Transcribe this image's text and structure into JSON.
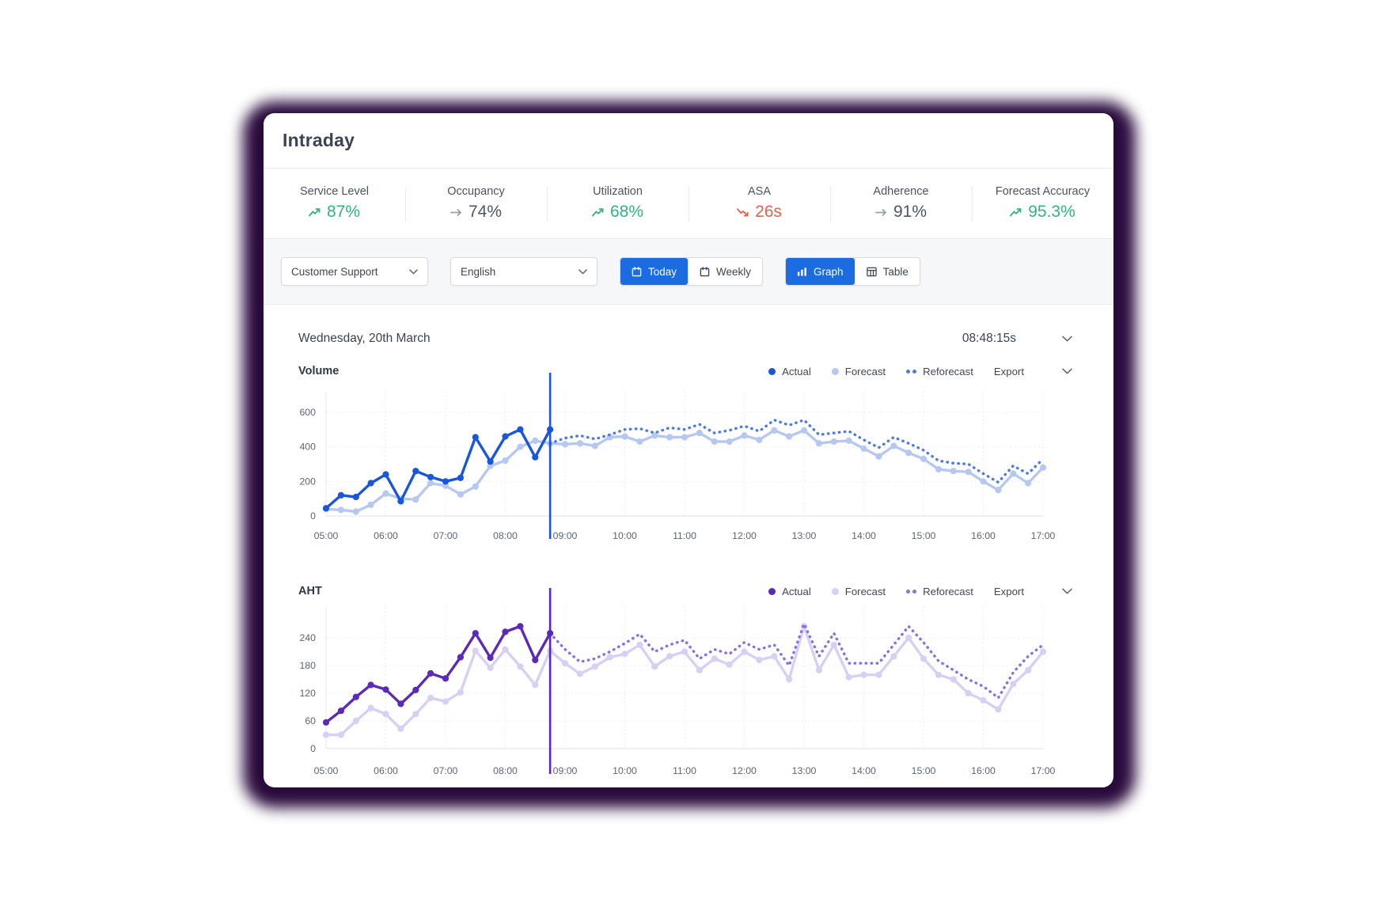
{
  "header": {
    "title": "Intraday"
  },
  "kpis": [
    {
      "label": "Service Level",
      "value": "87%",
      "trend": "up",
      "tone": "positive"
    },
    {
      "label": "Occupancy",
      "value": "74%",
      "trend": "flat",
      "tone": "neutral"
    },
    {
      "label": "Utilization",
      "value": "68%",
      "trend": "up",
      "tone": "positive"
    },
    {
      "label": "ASA",
      "value": "26s",
      "trend": "down",
      "tone": "negative"
    },
    {
      "label": "Adherence",
      "value": "91%",
      "trend": "flat",
      "tone": "neutral"
    },
    {
      "label": "Forecast Accuracy",
      "value": "95.3%",
      "trend": "up",
      "tone": "positive"
    }
  ],
  "colors": {
    "positive": "#2eb480",
    "negative": "#ee5d50",
    "neutral_icon": "#97a0ae",
    "neutral_text": "#4d5667",
    "accent_blue": "#1a6ce0",
    "backdrop_purple": "#2a0b3d",
    "volume_actual": "#1a56db",
    "volume_forecast": "#b7c8f0",
    "volume_reforecast": "#4e7ae8",
    "aht_actual": "#5b2ab8",
    "aht_forecast": "#d8d0f3",
    "aht_reforecast": "#8a6fe0"
  },
  "filters": {
    "queue": {
      "value": "Customer Support"
    },
    "language": {
      "value": "English"
    },
    "period": {
      "options": [
        "Today",
        "Weekly"
      ],
      "selected": "Today"
    },
    "view": {
      "options": [
        "Graph",
        "Table"
      ],
      "selected": "Graph"
    }
  },
  "date_bar": {
    "date": "Wednesday, 20th March",
    "time": "08:48:15s"
  },
  "chart_data": [
    {
      "type": "line",
      "title": "Volume",
      "export_label": "Export",
      "x_ticks": [
        "05:00",
        "06:00",
        "07:00",
        "08:00",
        "09:00",
        "10:00",
        "11:00",
        "12:00",
        "13:00",
        "14:00",
        "15:00",
        "16:00",
        "17:00"
      ],
      "x_step_minutes": 15,
      "n_points": 49,
      "ylim": [
        0,
        700
      ],
      "yticks": [
        0,
        200,
        400,
        600
      ],
      "now_index": 15,
      "now_time": "08:45",
      "now_line_color": "#1a56db",
      "legend_position": "top-right",
      "grid": true,
      "series": [
        {
          "name": "Forecast",
          "color": "#b7c8f0",
          "style": "solid",
          "points": true,
          "start_index": 0,
          "values": [
            40,
            35,
            25,
            65,
            130,
            100,
            95,
            190,
            175,
            125,
            170,
            290,
            320,
            400,
            435,
            420,
            415,
            420,
            405,
            455,
            460,
            430,
            465,
            455,
            455,
            480,
            430,
            430,
            465,
            440,
            495,
            460,
            495,
            420,
            430,
            435,
            390,
            345,
            405,
            365,
            330,
            270,
            260,
            255,
            200,
            150,
            245,
            190,
            280
          ]
        },
        {
          "name": "Reforecast",
          "color": "#4e7ae8",
          "style": "dotted",
          "points": false,
          "start_index": 15,
          "values": [
            420,
            450,
            465,
            445,
            470,
            500,
            505,
            480,
            510,
            500,
            530,
            480,
            495,
            520,
            490,
            555,
            525,
            555,
            470,
            480,
            490,
            440,
            395,
            455,
            420,
            380,
            320,
            305,
            300,
            245,
            195,
            290,
            245,
            330
          ]
        },
        {
          "name": "Actual",
          "color": "#1a56db",
          "style": "solid",
          "points": true,
          "start_index": 0,
          "values": [
            45,
            120,
            110,
            190,
            240,
            85,
            260,
            225,
            200,
            220,
            455,
            315,
            460,
            500,
            340,
            500
          ]
        }
      ]
    },
    {
      "type": "line",
      "title": "AHT",
      "export_label": "Export",
      "x_ticks": [
        "05:00",
        "06:00",
        "07:00",
        "08:00",
        "09:00",
        "10:00",
        "11:00",
        "12:00",
        "13:00",
        "14:00",
        "15:00",
        "16:00",
        "17:00"
      ],
      "x_step_minutes": 15,
      "n_points": 49,
      "ylim": [
        0,
        300
      ],
      "yticks": [
        0,
        60,
        120,
        180,
        240
      ],
      "now_index": 15,
      "now_time": "08:45",
      "now_line_color": "#5526c9",
      "legend_position": "top-right",
      "grid": true,
      "series": [
        {
          "name": "Forecast",
          "color": "#d8d0f3",
          "style": "solid",
          "points": true,
          "start_index": 0,
          "values": [
            30,
            30,
            60,
            88,
            75,
            43,
            75,
            110,
            102,
            122,
            212,
            175,
            215,
            178,
            138,
            212,
            185,
            162,
            178,
            198,
            205,
            225,
            178,
            200,
            210,
            170,
            195,
            182,
            210,
            192,
            200,
            150,
            265,
            170,
            225,
            155,
            160,
            160,
            200,
            240,
            195,
            160,
            150,
            120,
            105,
            85,
            140,
            170,
            210
          ]
        },
        {
          "name": "Reforecast",
          "color": "#8a6fe0",
          "style": "dotted",
          "points": false,
          "start_index": 15,
          "values": [
            250,
            215,
            188,
            195,
            210,
            228,
            248,
            210,
            225,
            235,
            195,
            215,
            205,
            230,
            215,
            225,
            180,
            270,
            200,
            250,
            185,
            185,
            185,
            225,
            265,
            230,
            190,
            170,
            150,
            135,
            110,
            165,
            200,
            225
          ]
        },
        {
          "name": "Actual",
          "color": "#5b2ab8",
          "style": "solid",
          "points": true,
          "start_index": 0,
          "values": [
            57,
            82,
            112,
            138,
            128,
            97,
            127,
            163,
            152,
            198,
            250,
            197,
            253,
            265,
            192,
            250
          ]
        }
      ]
    }
  ]
}
